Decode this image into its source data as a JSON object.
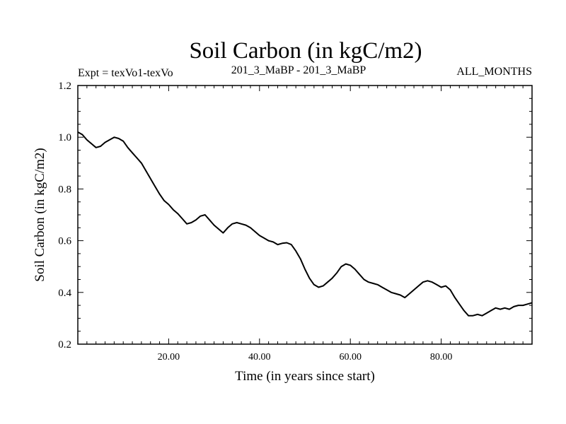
{
  "chart_data": {
    "type": "line",
    "title": "Soil Carbon (in kgC/m2)",
    "subtitle_left": "Expt = texVo1-texVo",
    "subtitle_center": "201_3_MaBP - 201_3_MaBP",
    "subtitle_right": "ALL_MONTHS",
    "xlabel": "Time (in years since start)",
    "ylabel": "Soil Carbon (in kgC/m2)",
    "xlim": [
      0,
      100
    ],
    "ylim": [
      0.2,
      1.2
    ],
    "x_ticks": [
      {
        "value": 20,
        "label": "20.00"
      },
      {
        "value": 40,
        "label": "40.00"
      },
      {
        "value": 60,
        "label": "60.00"
      },
      {
        "value": 80,
        "label": "80.00"
      }
    ],
    "y_ticks": [
      {
        "value": 0.2,
        "label": "0.2"
      },
      {
        "value": 0.4,
        "label": "0.4"
      },
      {
        "value": 0.6,
        "label": "0.6"
      },
      {
        "value": 0.8,
        "label": "0.8"
      },
      {
        "value": 1.0,
        "label": "1.0"
      },
      {
        "value": 1.2,
        "label": "1.2"
      }
    ],
    "series": [
      {
        "name": "Soil Carbon",
        "color": "#000000",
        "x": [
          0,
          1,
          2,
          3,
          4,
          5,
          6,
          7,
          8,
          9,
          10,
          11,
          12,
          13,
          14,
          15,
          16,
          17,
          18,
          19,
          20,
          21,
          22,
          23,
          24,
          25,
          26,
          27,
          28,
          29,
          30,
          31,
          32,
          33,
          34,
          35,
          36,
          37,
          38,
          39,
          40,
          41,
          42,
          43,
          44,
          45,
          46,
          47,
          48,
          49,
          50,
          51,
          52,
          53,
          54,
          55,
          56,
          57,
          58,
          59,
          60,
          61,
          62,
          63,
          64,
          65,
          66,
          67,
          68,
          69,
          70,
          71,
          72,
          73,
          74,
          75,
          76,
          77,
          78,
          79,
          80,
          81,
          82,
          83,
          84,
          85,
          86,
          87,
          88,
          89,
          90,
          91,
          92,
          93,
          94,
          95,
          96,
          97,
          98,
          99,
          100
        ],
        "y": [
          1.02,
          1.01,
          0.99,
          0.975,
          0.96,
          0.965,
          0.98,
          0.99,
          1.0,
          0.995,
          0.985,
          0.96,
          0.94,
          0.92,
          0.9,
          0.87,
          0.84,
          0.81,
          0.78,
          0.755,
          0.74,
          0.72,
          0.705,
          0.685,
          0.665,
          0.67,
          0.68,
          0.695,
          0.7,
          0.68,
          0.66,
          0.645,
          0.63,
          0.65,
          0.665,
          0.67,
          0.665,
          0.66,
          0.65,
          0.635,
          0.62,
          0.61,
          0.6,
          0.595,
          0.585,
          0.59,
          0.592,
          0.585,
          0.56,
          0.53,
          0.49,
          0.455,
          0.43,
          0.42,
          0.425,
          0.44,
          0.455,
          0.475,
          0.5,
          0.51,
          0.505,
          0.49,
          0.47,
          0.45,
          0.44,
          0.435,
          0.43,
          0.42,
          0.41,
          0.4,
          0.395,
          0.39,
          0.38,
          0.395,
          0.41,
          0.425,
          0.44,
          0.445,
          0.44,
          0.43,
          0.42,
          0.425,
          0.41,
          0.38,
          0.355,
          0.33,
          0.31,
          0.31,
          0.315,
          0.31,
          0.32,
          0.33,
          0.34,
          0.335,
          0.34,
          0.335,
          0.345,
          0.35,
          0.35,
          0.355,
          0.36
        ]
      }
    ]
  }
}
